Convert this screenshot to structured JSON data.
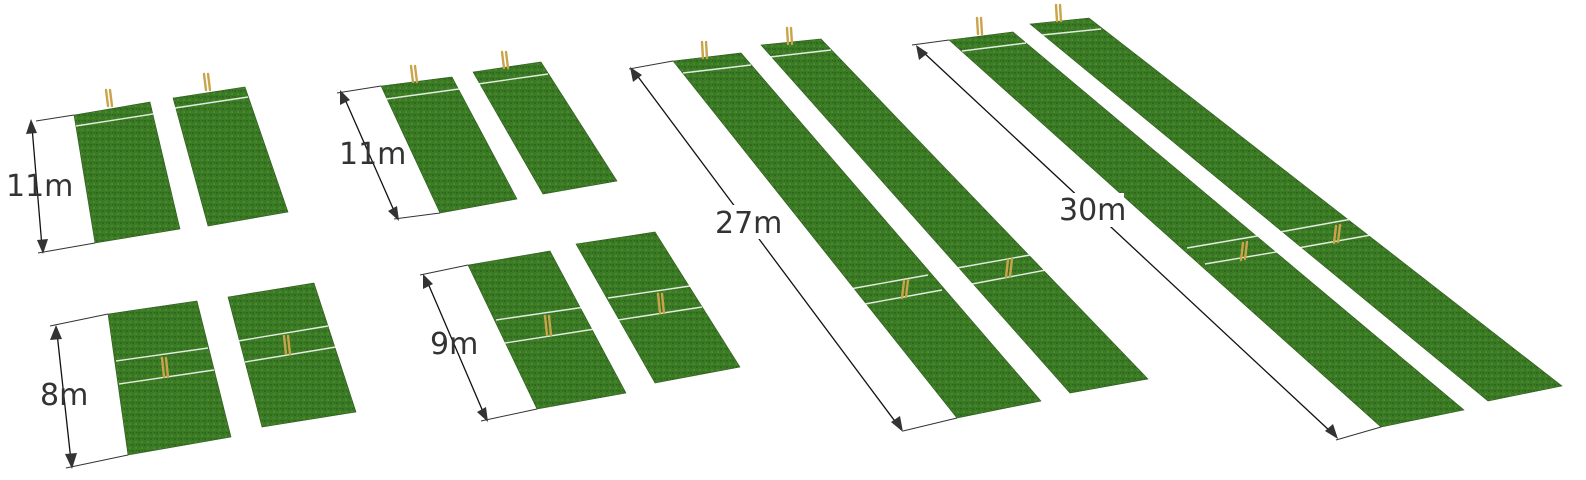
{
  "colors": {
    "background": "#ffffff",
    "turf": "#3b7a24",
    "turf_shade": "#2f6a1c",
    "crease": "#ffffff",
    "stumps": "#e0c070",
    "dimension_line": "#111111",
    "label": "#333333"
  },
  "pitch_sets": [
    {
      "id": "set-11m-a",
      "label": "11m",
      "stumps": "end"
    },
    {
      "id": "set-11m-b",
      "label": "11m",
      "stumps": "end"
    },
    {
      "id": "set-27m",
      "label": "27m",
      "stumps": "end-and-middle"
    },
    {
      "id": "set-30m",
      "label": "30m",
      "stumps": "end-and-middle"
    },
    {
      "id": "set-8m",
      "label": "8m",
      "stumps": "middle"
    },
    {
      "id": "set-9m",
      "label": "9m",
      "stumps": "middle"
    }
  ]
}
